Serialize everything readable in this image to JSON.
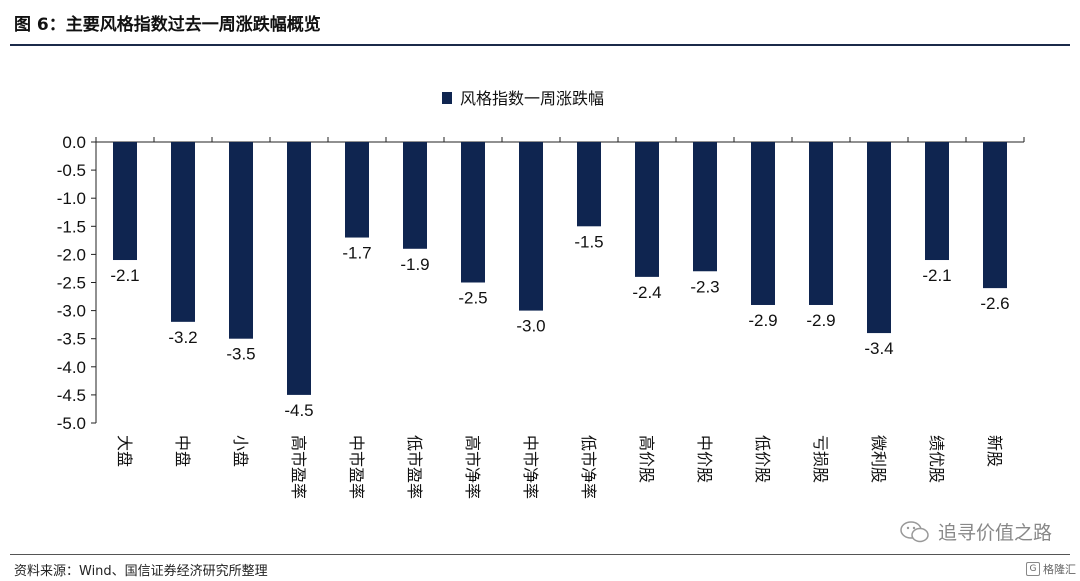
{
  "figure": {
    "title": "图 6：主要风格指数过去一周涨跌幅概览",
    "source": "资料来源：Wind、国信证券经济研究所整理",
    "watermark": "追寻价值之路",
    "badge": "格隆汇"
  },
  "colors": {
    "bar": "#0f2550",
    "axis": "#222222"
  },
  "chart_data": {
    "type": "bar",
    "title": "",
    "xlabel": "",
    "ylabel": "",
    "ylim": [
      -5.0,
      0.0
    ],
    "yticks": [
      "0.0",
      "-0.5",
      "-1.0",
      "-1.5",
      "-2.0",
      "-2.5",
      "-3.0",
      "-3.5",
      "-4.0",
      "-4.5",
      "-5.0"
    ],
    "grid": false,
    "legend_position": "top-center",
    "categories": [
      "大盘",
      "中盘",
      "小盘",
      "高市盈率",
      "中市盈率",
      "低市盈率",
      "高市净率",
      "中市净率",
      "低市净率",
      "高价股",
      "中价股",
      "低价股",
      "亏损股",
      "微利股",
      "绩优股",
      "新股"
    ],
    "series": [
      {
        "name": "风格指数一周涨跌幅",
        "values": [
          -2.1,
          -3.2,
          -3.5,
          -4.5,
          -1.7,
          -1.9,
          -2.5,
          -3.0,
          -1.5,
          -2.4,
          -2.3,
          -2.9,
          -2.9,
          -3.4,
          -2.1,
          -2.6
        ],
        "labels": [
          "-2.1",
          "-3.2",
          "-3.5",
          "-4.5",
          "-1.7",
          "-1.9",
          "-2.5",
          "-3.0",
          "-1.5",
          "-2.4",
          "-2.3",
          "-2.9",
          "-2.9",
          "-3.4",
          "-2.1",
          "-2.6"
        ]
      }
    ]
  }
}
